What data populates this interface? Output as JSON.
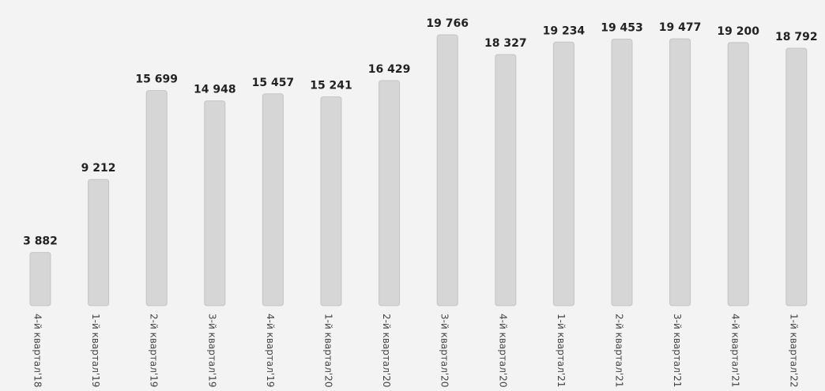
{
  "chart_data": {
    "type": "bar",
    "categories": [
      "4-й квартал'18",
      "1-й квартал'19",
      "2-й квартал'19",
      "3-й квартал'19",
      "4-й квартал'19",
      "1-й квартал'20",
      "2-й квартал'20",
      "3-й квартал'20",
      "4-й квартал'20",
      "1-й квартал'21",
      "2-й квартал'21",
      "3-й квартал'21",
      "4-й квартал'21",
      "1-й квартал'22"
    ],
    "values": [
      3882,
      9212,
      15699,
      14948,
      15457,
      15241,
      16429,
      19766,
      18327,
      19234,
      19453,
      19477,
      19200,
      18792
    ],
    "value_labels": [
      "3 882",
      "9 212",
      "15 699",
      "14 948",
      "15 457",
      "15 241",
      "16 429",
      "19 766",
      "18 327",
      "19 234",
      "19 453",
      "19 477",
      "19 200",
      "18 792"
    ],
    "title": "",
    "xlabel": "",
    "ylabel": "",
    "ylim": [
      0,
      20000
    ],
    "grid": false,
    "legend": "none",
    "colors": {
      "background": "#f3f3f3",
      "bar": "#d6d6d6",
      "bar_shade": "#c4c4c4",
      "label": "#222222",
      "tick": "#444444"
    }
  }
}
